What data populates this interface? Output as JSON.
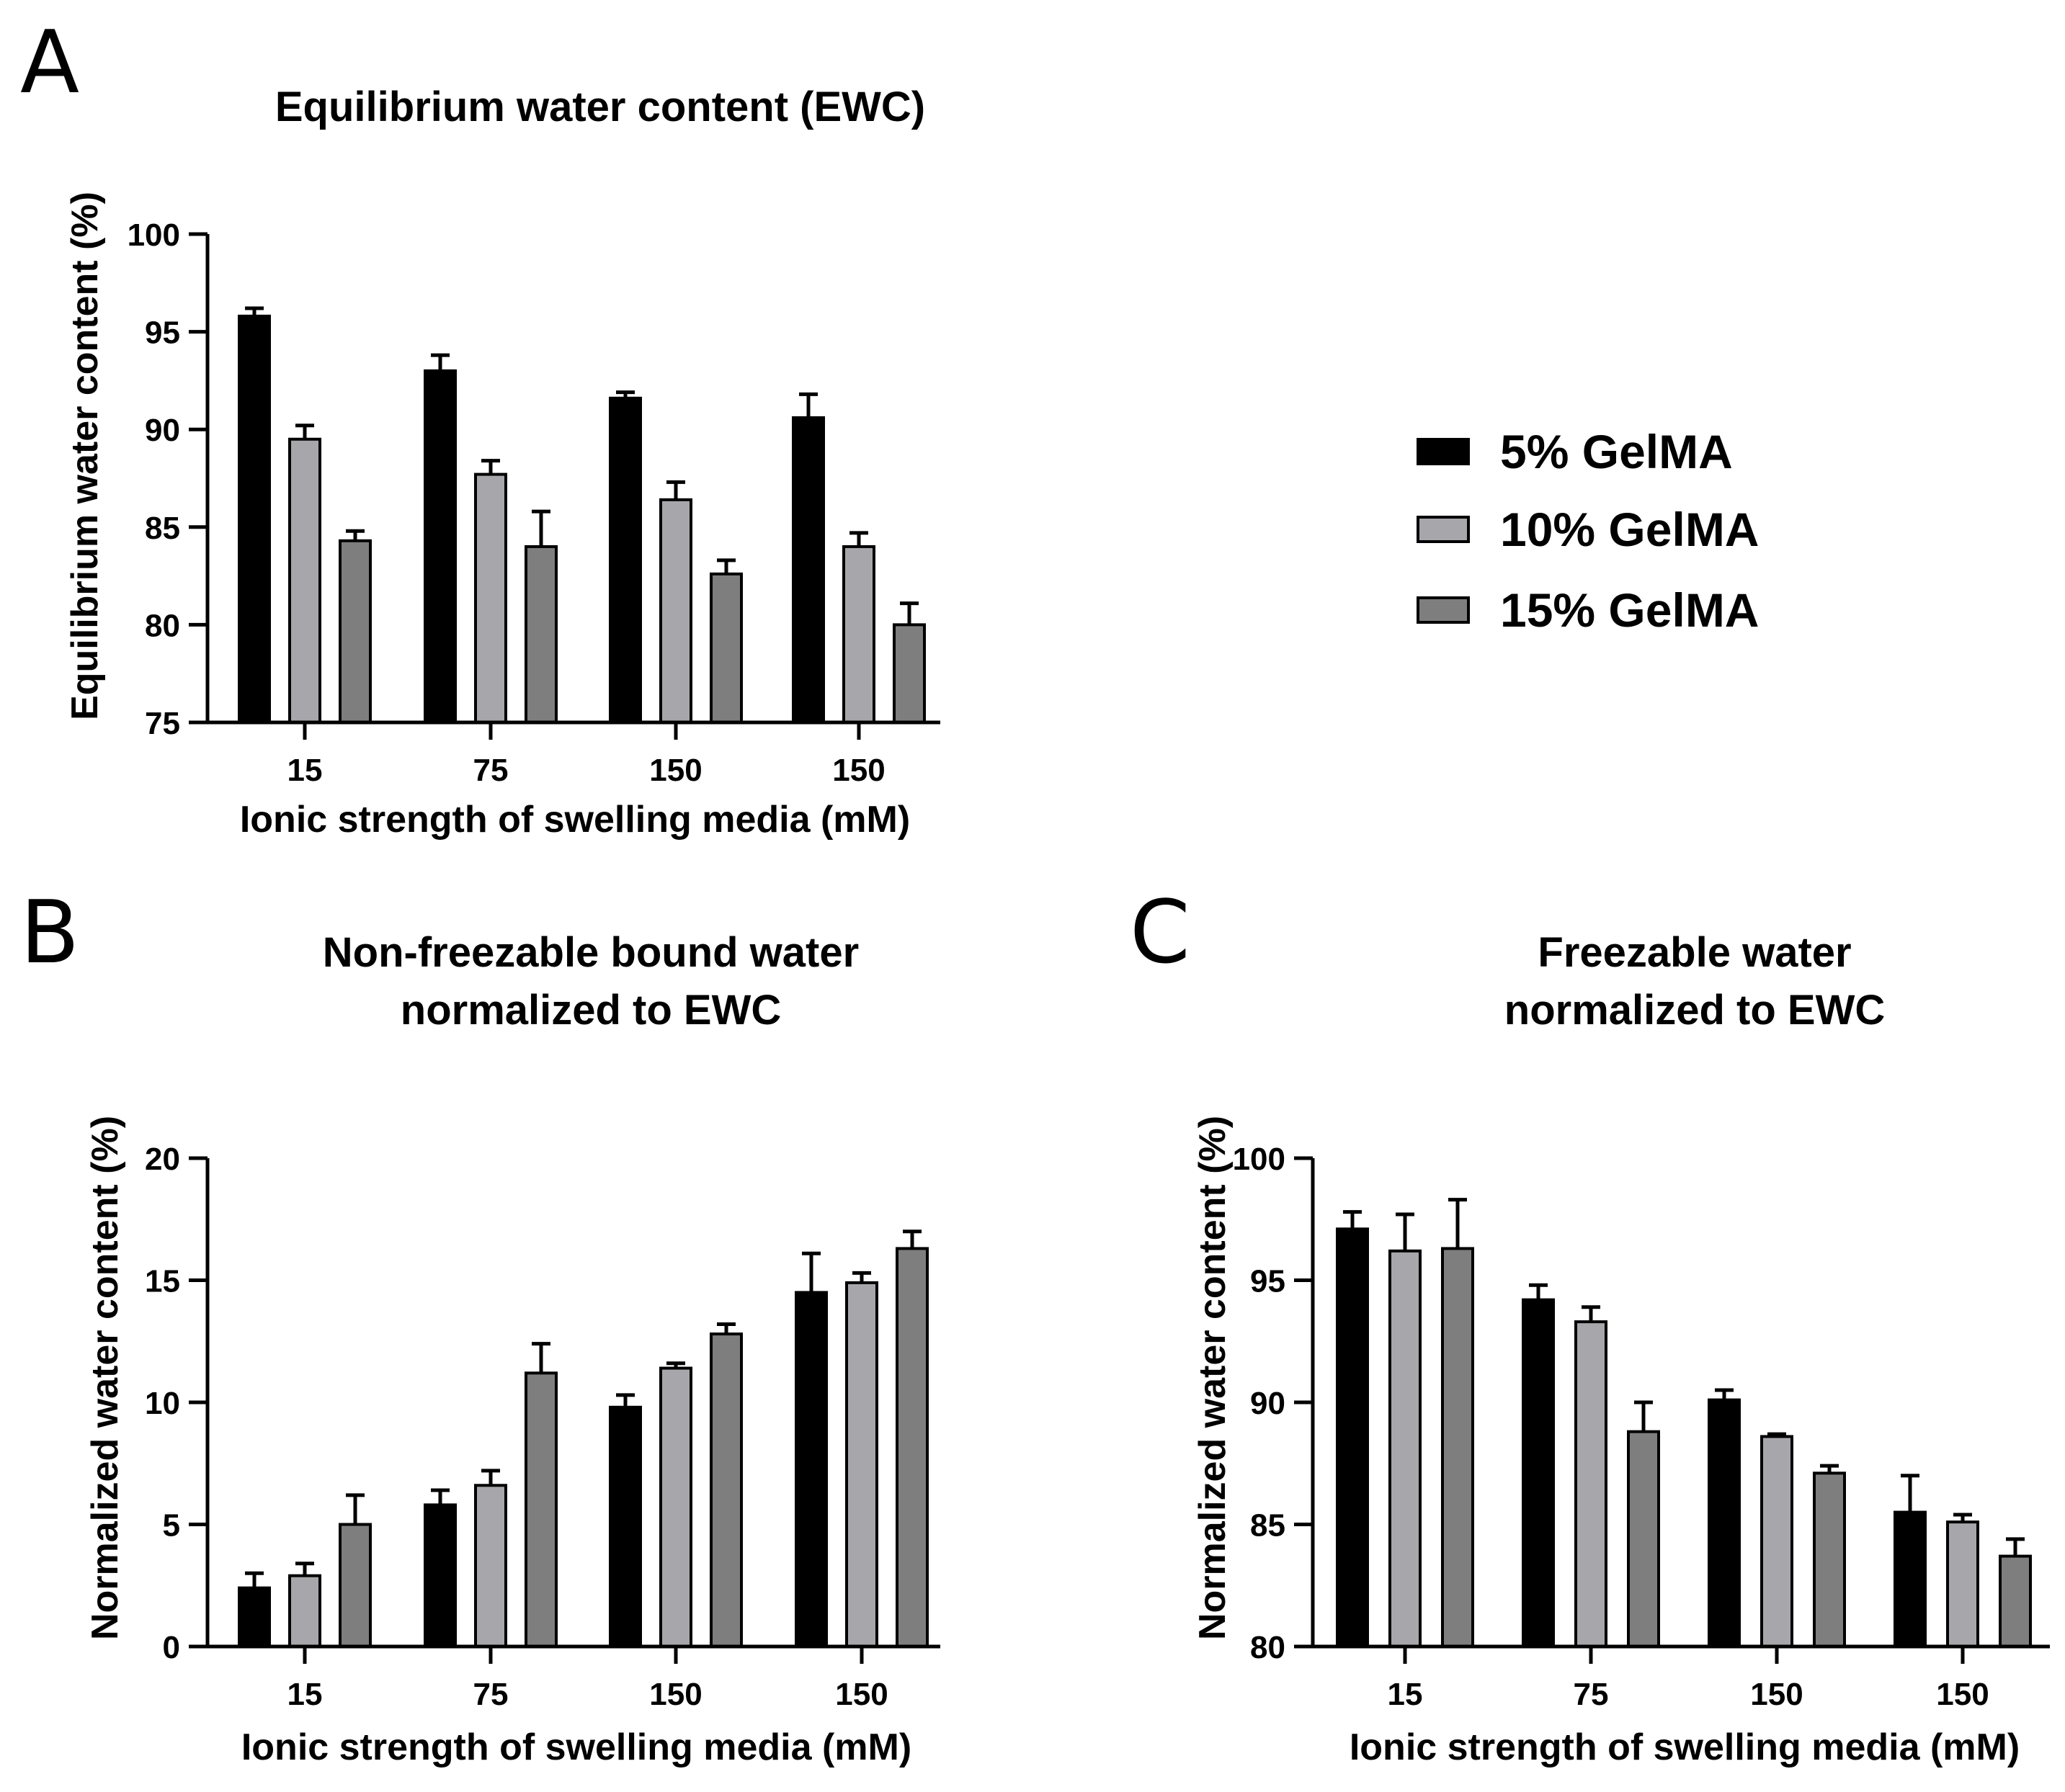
{
  "legend": [
    "5% GelMA",
    "10% GelMA",
    "15% GelMA"
  ],
  "series_colors": [
    "#000000",
    "#a7a7ab",
    "#7e7e7e"
  ],
  "chart_data": [
    {
      "panel": "A",
      "type": "bar",
      "title": "Equilibrium water content (EWC)",
      "xlabel": "Ionic strength of swelling media (mM)",
      "ylabel": "Equilibrium water content (%)",
      "categories": [
        "15",
        "75",
        "150",
        "150"
      ],
      "ylim": [
        75,
        100
      ],
      "yticks": [
        75,
        80,
        85,
        90,
        95,
        100
      ],
      "series": [
        {
          "name": "5% GelMA",
          "values": [
            95.8,
            93.0,
            91.6,
            90.6
          ],
          "errors": [
            0.4,
            0.8,
            0.3,
            1.2
          ]
        },
        {
          "name": "10% GelMA",
          "values": [
            89.5,
            87.7,
            86.4,
            84.0
          ],
          "errors": [
            0.7,
            0.7,
            0.9,
            0.7
          ]
        },
        {
          "name": "15% GelMA",
          "values": [
            84.3,
            84.0,
            82.6,
            80.0
          ],
          "errors": [
            0.5,
            1.8,
            0.7,
            1.1
          ]
        }
      ]
    },
    {
      "panel": "B",
      "type": "bar",
      "title": [
        "Non-freezable bound water",
        "normalized to EWC"
      ],
      "xlabel": "Ionic strength of swelling media (mM)",
      "ylabel": "Normalized water content (%)",
      "categories": [
        "15",
        "75",
        "150",
        "150"
      ],
      "ylim": [
        0,
        20
      ],
      "yticks": [
        0,
        5,
        10,
        15,
        20
      ],
      "series": [
        {
          "name": "5% GelMA",
          "values": [
            2.4,
            5.8,
            9.8,
            14.5
          ],
          "errors": [
            0.6,
            0.6,
            0.5,
            1.6
          ]
        },
        {
          "name": "10% GelMA",
          "values": [
            2.9,
            6.6,
            11.4,
            14.9
          ],
          "errors": [
            0.5,
            0.6,
            0.2,
            0.4
          ]
        },
        {
          "name": "15% GelMA",
          "values": [
            5.0,
            11.2,
            12.8,
            16.3
          ],
          "errors": [
            1.2,
            1.2,
            0.4,
            0.7
          ]
        }
      ]
    },
    {
      "panel": "C",
      "type": "bar",
      "title": [
        "Freezable water",
        "normalized to EWC"
      ],
      "xlabel": "Ionic strength of swelling media (mM)",
      "ylabel": "Normalized water content (%)",
      "categories": [
        "15",
        "75",
        "150",
        "150"
      ],
      "ylim": [
        80,
        100
      ],
      "yticks": [
        80,
        85,
        90,
        95,
        100
      ],
      "series": [
        {
          "name": "5% GelMA",
          "values": [
            97.1,
            94.2,
            90.1,
            85.5
          ],
          "errors": [
            0.7,
            0.6,
            0.4,
            1.5
          ]
        },
        {
          "name": "10% GelMA",
          "values": [
            96.2,
            93.3,
            88.6,
            85.1
          ],
          "errors": [
            1.5,
            0.6,
            0.1,
            0.3
          ]
        },
        {
          "name": "15% GelMA",
          "values": [
            96.3,
            88.8,
            87.1,
            83.7
          ],
          "errors": [
            2.0,
            1.2,
            0.3,
            0.7
          ]
        }
      ]
    }
  ]
}
